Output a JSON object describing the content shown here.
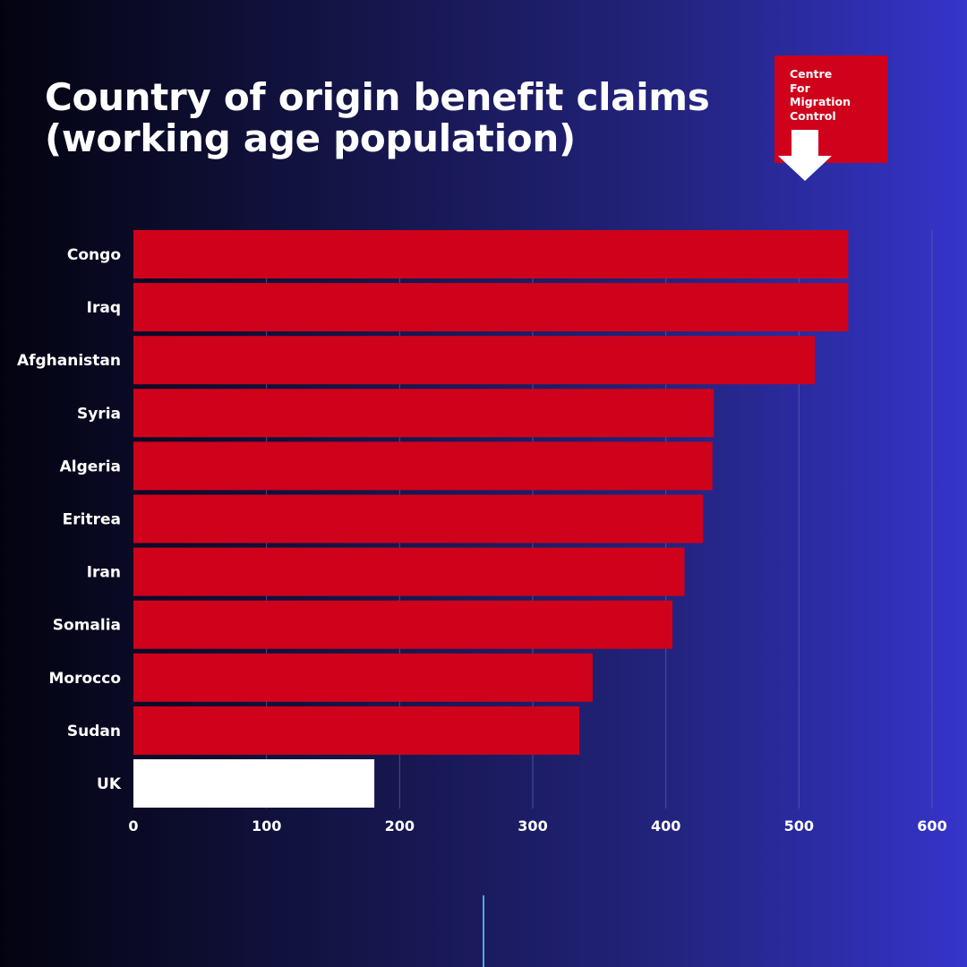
{
  "header": {
    "title_line1": "Country of origin benefit claims",
    "title_line2": "(working age population)"
  },
  "logo": {
    "text": "Centre\nFor\nMigration\nControl",
    "arrow_icon": "down-arrow-icon"
  },
  "colors": {
    "bar": "#d0021b",
    "highlight_bar": "#ffffff",
    "logo_bg": "#d0021b",
    "gridline": "#5b5fa8"
  },
  "chart_data": {
    "type": "bar",
    "orientation": "horizontal",
    "categories": [
      "Congo",
      "Iraq",
      "Afghanistan",
      "Syria",
      "Algeria",
      "Eritrea",
      "Iran",
      "Somalia",
      "Morocco",
      "Sudan",
      "UK"
    ],
    "values": [
      537,
      537,
      512,
      436,
      435,
      428,
      414,
      405,
      345,
      335,
      181
    ],
    "highlight": "UK",
    "xlim": [
      0,
      600
    ],
    "xticks": [
      0,
      100,
      200,
      300,
      400,
      500,
      600
    ],
    "grid": true
  }
}
